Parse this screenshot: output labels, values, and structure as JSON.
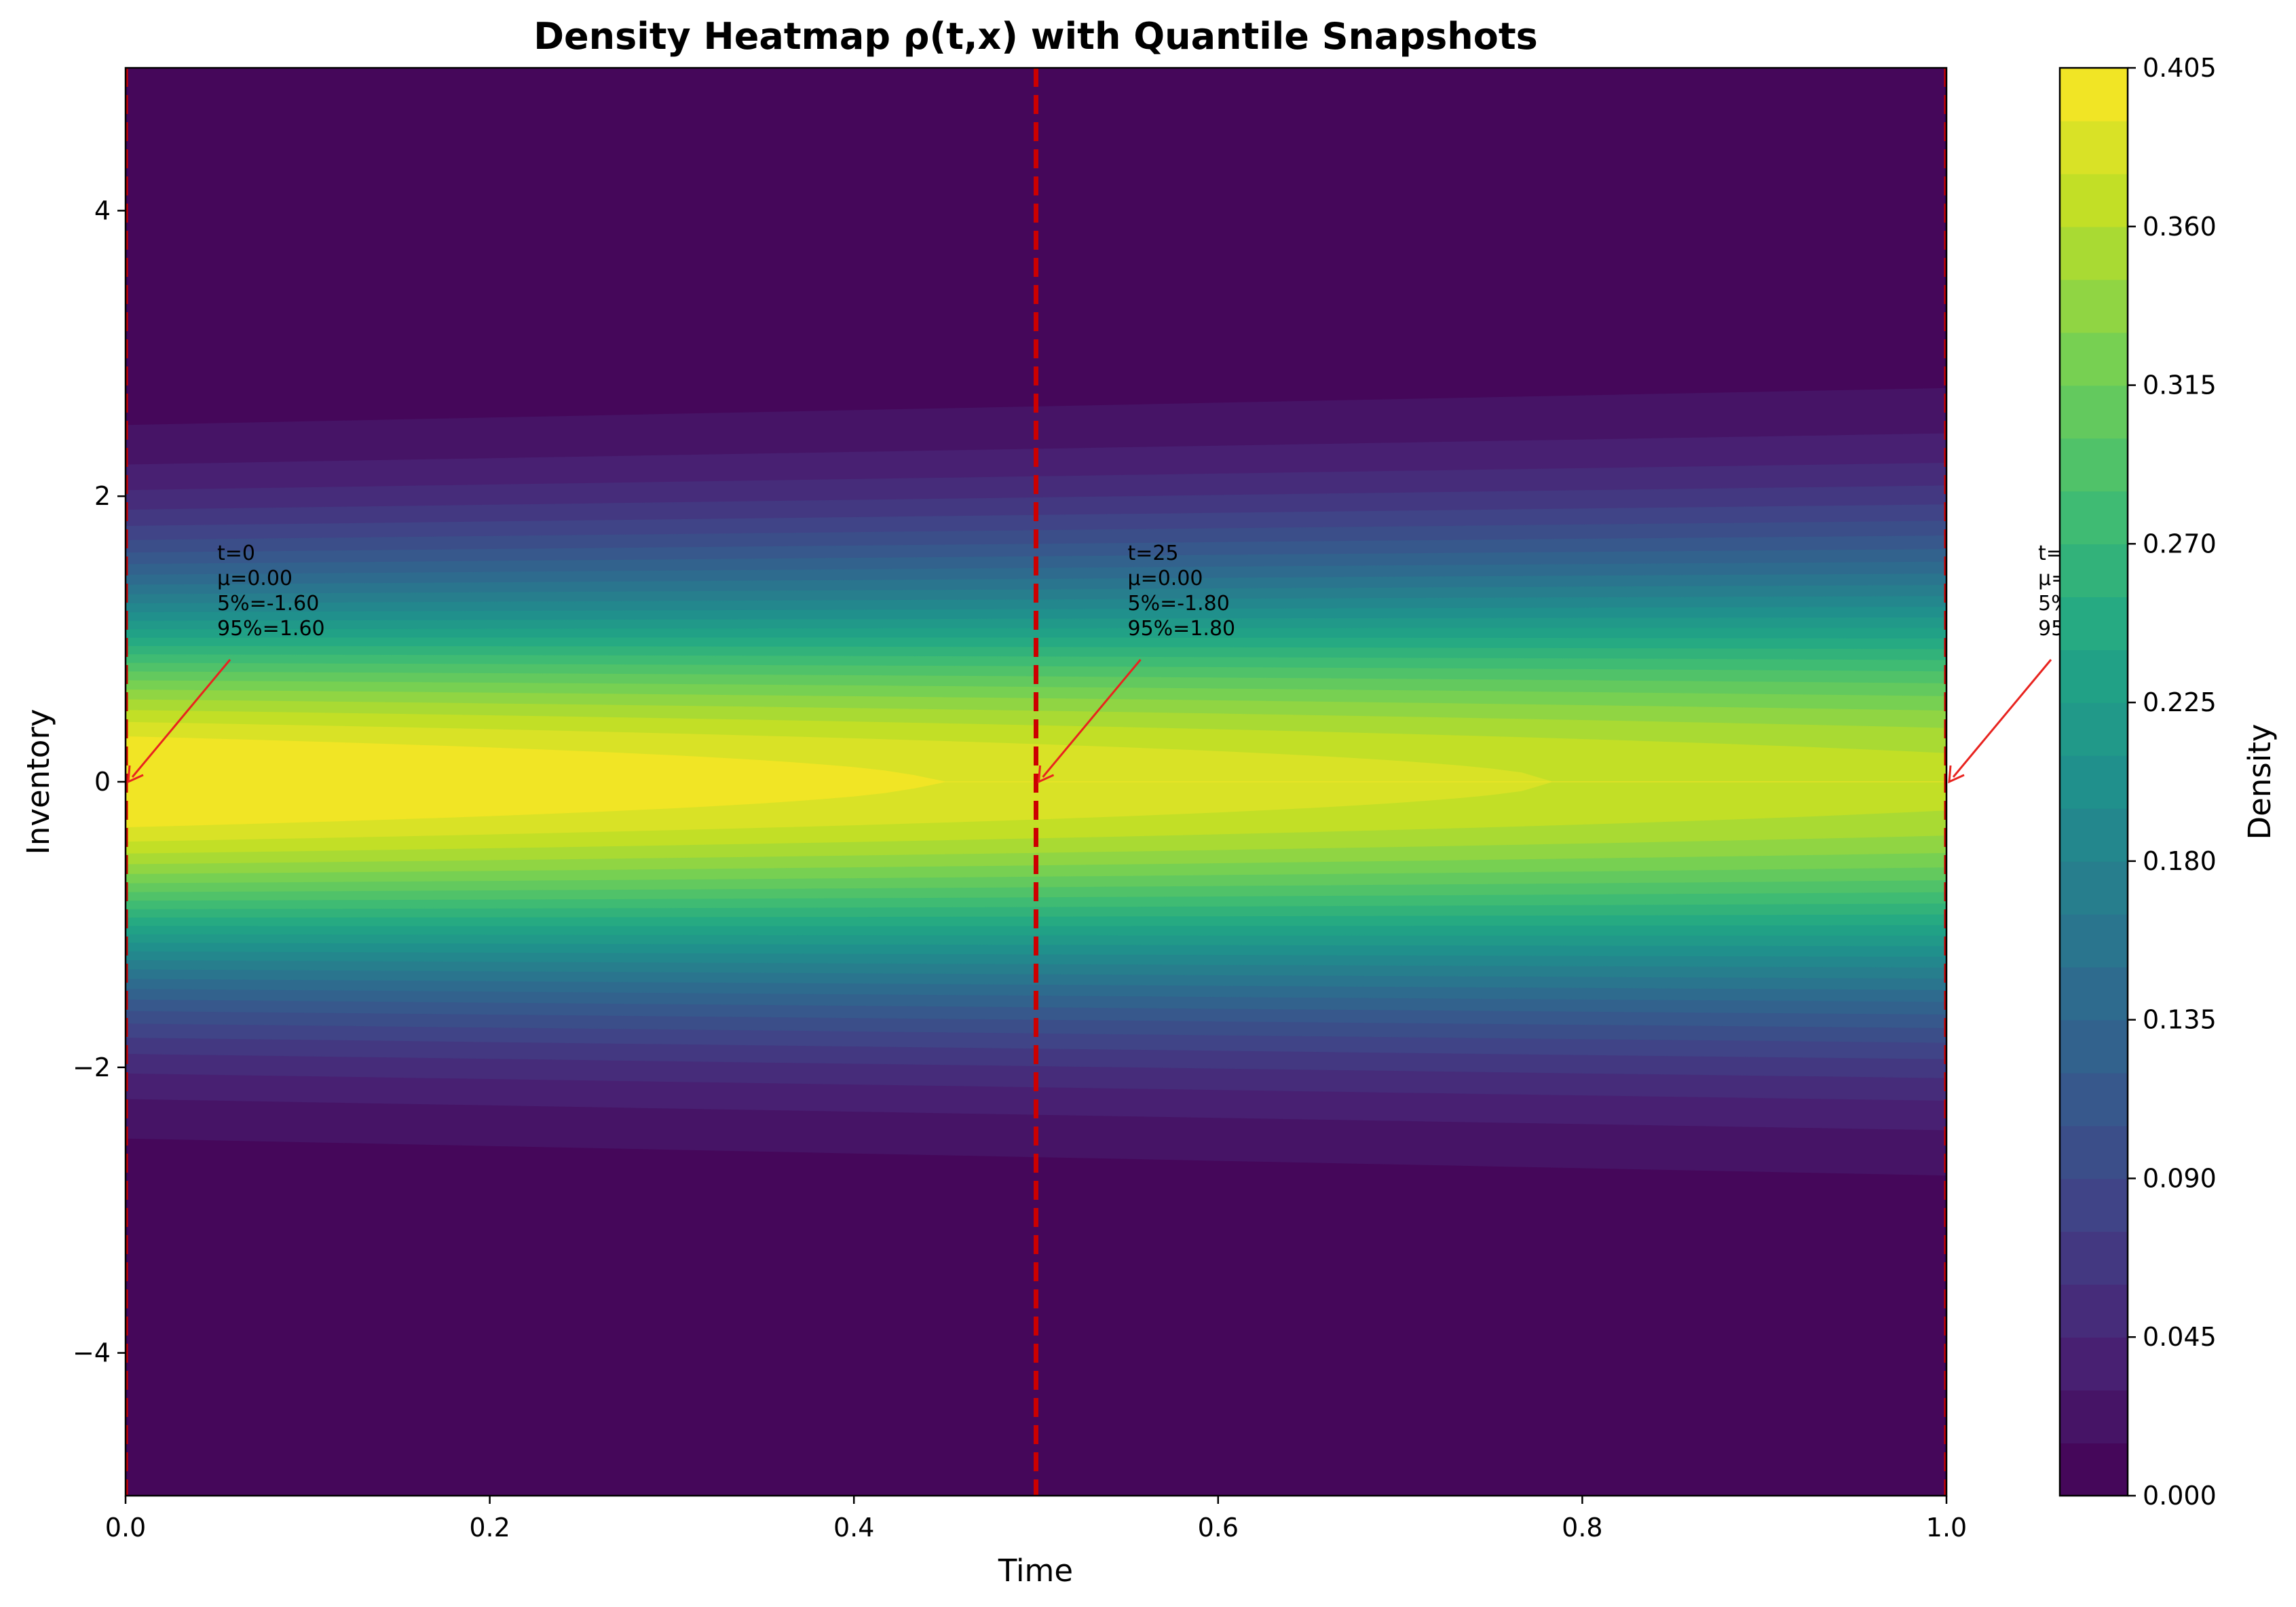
{
  "chart_data": {
    "type": "heatmap",
    "title": "Density Heatmap ρ(t,x) with Quantile Snapshots",
    "xlabel": "Time",
    "ylabel": "Inventory",
    "xlim": [
      0.0,
      1.0
    ],
    "ylim": [
      -5.0,
      5.0
    ],
    "x_ticks": [
      "0.0",
      "0.2",
      "0.4",
      "0.6",
      "0.8",
      "1.0"
    ],
    "y_ticks": [
      "−4",
      "−2",
      "0",
      "2",
      "4"
    ],
    "colorbar": {
      "label": "Density",
      "vmin": 0.0,
      "vmax": 0.405,
      "levels": 27,
      "colormap": "viridis",
      "ticks": [
        "0.000",
        "0.045",
        "0.090",
        "0.135",
        "0.180",
        "0.225",
        "0.270",
        "0.315",
        "0.360",
        "0.405"
      ]
    },
    "density_model": {
      "description": "Gaussian in inventory, mean 0, sigma grows with time",
      "sigma_at_t0": 0.97,
      "sigma_at_t1": 1.09
    },
    "snapshot_lines": {
      "color": "#cc0000",
      "times": [
        0.0,
        0.5,
        1.0
      ]
    },
    "annotations": [
      {
        "t": 0.0,
        "lines": [
          "t=0",
          "μ=0.00",
          "5%=-1.60",
          "95%=1.60"
        ]
      },
      {
        "t": 0.5,
        "lines": [
          "t=25",
          "μ=0.00",
          "5%=-1.80",
          "95%=1.80"
        ]
      },
      {
        "t": 1.0,
        "lines": [
          "t=",
          "μ=",
          "5%",
          "95"
        ],
        "partial_suffix": [
          "",
          "",
          "30",
          "30"
        ]
      }
    ]
  }
}
